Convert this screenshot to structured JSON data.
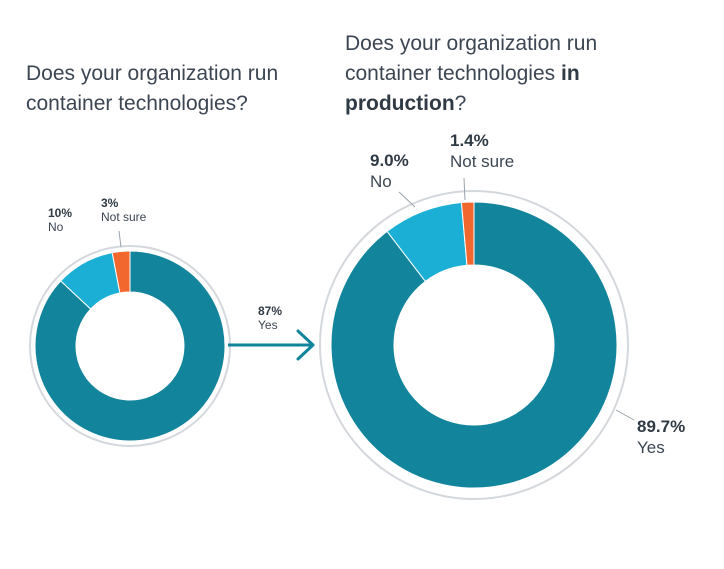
{
  "titles": {
    "left": "Does your organization run container technologies?",
    "right_prefix": "Does your organization run container technologies ",
    "right_bold": "in production",
    "right_suffix": "?"
  },
  "colors": {
    "yes": "#12849b",
    "no": "#1bafd6",
    "not_sure": "#f2672d",
    "ring": "#d4d8dc",
    "arrow": "#12849b"
  },
  "chart_data": [
    {
      "type": "pie",
      "title": "Does your organization run container technologies?",
      "slices": [
        {
          "label": "Yes",
          "display": "87%",
          "value": 87
        },
        {
          "label": "No",
          "display": "10%",
          "value": 10
        },
        {
          "label": "Not sure",
          "display": "3%",
          "value": 3
        }
      ]
    },
    {
      "type": "pie",
      "title": "Does your organization run container technologies in production?",
      "slices": [
        {
          "label": "Yes",
          "display": "89.7%",
          "value": 89.7
        },
        {
          "label": "No",
          "display": "9.0%",
          "value": 9.0
        },
        {
          "label": "Not sure",
          "display": "1.4%",
          "value": 1.4
        }
      ]
    }
  ]
}
